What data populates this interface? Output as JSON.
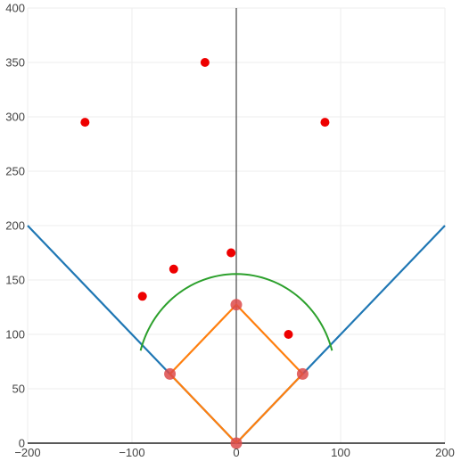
{
  "chart_data": {
    "type": "scatter",
    "title": "",
    "xlabel": "",
    "ylabel": "",
    "xlim": [
      -200,
      200
    ],
    "ylim": [
      0,
      400
    ],
    "x_ticks": [
      -200,
      -100,
      0,
      100,
      200
    ],
    "y_ticks": [
      0,
      50,
      100,
      150,
      200,
      250,
      300,
      350,
      400
    ],
    "x_tick_labels": [
      "−200",
      "−100",
      "0",
      "100",
      "200"
    ],
    "y_tick_labels": [
      "0",
      "50",
      "100",
      "150",
      "200",
      "250",
      "300",
      "350",
      "400"
    ],
    "grid": true,
    "series": [
      {
        "type": "line",
        "color": "#1f77b4",
        "x": [
          -200,
          0,
          200
        ],
        "y": [
          200,
          0,
          200
        ]
      },
      {
        "type": "line",
        "color": "#ff7f0e",
        "x": [
          0,
          63.6,
          0,
          -63.6,
          0
        ],
        "y": [
          0,
          63.6,
          127.3,
          63.6,
          0
        ]
      },
      {
        "type": "arc",
        "color": "#2ca02c",
        "center": [
          0,
          60.5
        ],
        "radius": 95,
        "angle_range_deg": [
          15,
          165
        ]
      },
      {
        "type": "scatter",
        "color": "#dd4b4b",
        "marker_size": "large",
        "x": [
          0,
          63.6,
          0,
          -63.6
        ],
        "y": [
          0,
          63.6,
          127.3,
          63.6
        ]
      },
      {
        "type": "scatter",
        "color": "#ee0000",
        "marker_size": "small",
        "x": [
          -145,
          -30,
          85,
          -90,
          -60,
          -5,
          50
        ],
        "y": [
          295,
          350,
          295,
          135,
          160,
          175,
          100
        ]
      }
    ]
  }
}
